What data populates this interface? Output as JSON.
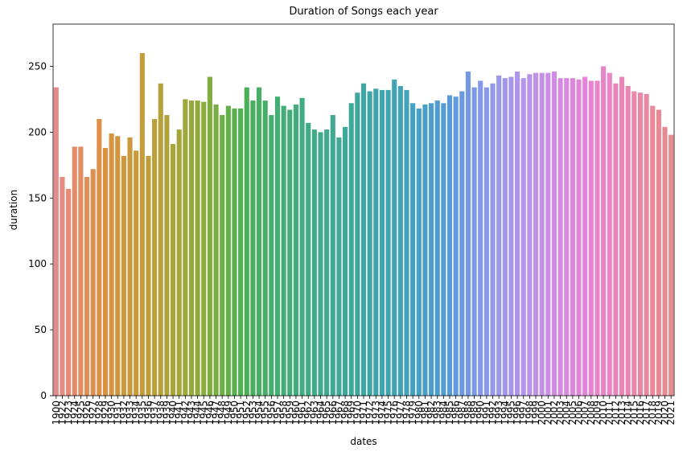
{
  "chart_data": {
    "type": "bar",
    "title": "Duration of Songs each year",
    "x_label": "dates",
    "y_label": "duration",
    "categories": [
      "1900",
      "1922",
      "1923",
      "1924",
      "1925",
      "1926",
      "1927",
      "1928",
      "1929",
      "1930",
      "1931",
      "1932",
      "1933",
      "1934",
      "1935",
      "1936",
      "1937",
      "1938",
      "1939",
      "1940",
      "1941",
      "1942",
      "1943",
      "1944",
      "1945",
      "1946",
      "1947",
      "1948",
      "1949",
      "1950",
      "1951",
      "1952",
      "1953",
      "1954",
      "1955",
      "1956",
      "1957",
      "1958",
      "1959",
      "1960",
      "1961",
      "1962",
      "1963",
      "1964",
      "1965",
      "1966",
      "1967",
      "1968",
      "1969",
      "1970",
      "1971",
      "1972",
      "1973",
      "1974",
      "1975",
      "1976",
      "1977",
      "1978",
      "1979",
      "1980",
      "1981",
      "1982",
      "1983",
      "1984",
      "1985",
      "1986",
      "1987",
      "1988",
      "1989",
      "1990",
      "1991",
      "1992",
      "1993",
      "1994",
      "1995",
      "1996",
      "1997",
      "1998",
      "1999",
      "2000",
      "2001",
      "2002",
      "2003",
      "2004",
      "2005",
      "2006",
      "2007",
      "2008",
      "2009",
      "2010",
      "2011",
      "2012",
      "2013",
      "2014",
      "2015",
      "2016",
      "2017",
      "2018",
      "2019",
      "2020",
      "2021"
    ],
    "values": [
      234,
      166,
      157,
      189,
      189,
      166,
      172,
      210,
      188,
      199,
      197,
      182,
      196,
      186,
      260,
      182,
      210,
      237,
      213,
      191,
      202,
      225,
      224,
      224,
      223,
      242,
      221,
      213,
      220,
      218,
      218,
      234,
      224,
      234,
      224,
      213,
      227,
      220,
      217,
      221,
      226,
      207,
      202,
      200,
      202,
      213,
      196,
      204,
      222,
      230,
      237,
      231,
      233,
      232,
      232,
      240,
      235,
      232,
      222,
      218,
      221,
      222,
      224,
      222,
      228,
      227,
      231,
      246,
      234,
      239,
      234,
      237,
      243,
      241,
      242,
      246,
      241,
      244,
      245,
      245,
      245,
      246,
      241,
      241,
      241,
      240,
      242,
      239,
      239,
      250,
      245,
      237,
      242,
      235,
      231,
      230,
      229,
      220,
      217,
      204,
      198
    ],
    "colors": [
      "#e8898a",
      "#e68a80",
      "#e58b75",
      "#e38c6c",
      "#e28d62",
      "#e08e58",
      "#de8f50",
      "#dc9048",
      "#d99142",
      "#d69340",
      "#d2953d",
      "#cf973c",
      "#cb993b",
      "#c79b3b",
      "#c39d3b",
      "#bf9e3b",
      "#baa03b",
      "#b5a23b",
      "#b0a33b",
      "#aaa53b",
      "#a4a63b",
      "#9ea83b",
      "#97a93c",
      "#90ab3d",
      "#88ac3e",
      "#80ad40",
      "#77ae43",
      "#6eaf46",
      "#64b049",
      "#5ab04d",
      "#50b052",
      "#4ab057",
      "#47b05d",
      "#46af62",
      "#45af67",
      "#44ae6c",
      "#43ae71",
      "#43ad75",
      "#42ad79",
      "#42ac7d",
      "#41ac81",
      "#41ab85",
      "#41ab89",
      "#40aa8c",
      "#40aa90",
      "#40a993",
      "#3fa996",
      "#3fa899",
      "#3fa89c",
      "#3fa7a0",
      "#3fa7a3",
      "#3fa6a6",
      "#40a6a9",
      "#40a5ad",
      "#40a4b0",
      "#41a4b4",
      "#42a3b7",
      "#43a2bb",
      "#44a1bf",
      "#46a0c3",
      "#489fc7",
      "#4b9ecb",
      "#4f9dd0",
      "#549cd4",
      "#5a9ad9",
      "#619ade",
      "#6999e2",
      "#7399e5",
      "#7c99e8",
      "#8499e9",
      "#8c99ea",
      "#9399eb",
      "#9a98eb",
      "#a097eb",
      "#a796eb",
      "#ad95eb",
      "#b394ea",
      "#b993e9",
      "#bf92e8",
      "#c490e7",
      "#ca8ee5",
      "#cf8ce3",
      "#d48ae1",
      "#d988df",
      "#dd86dc",
      "#e185d9",
      "#e484d5",
      "#e784d1",
      "#e884cc",
      "#e984c7",
      "#ea84c2",
      "#ea85bc",
      "#ea86b6",
      "#ea86b0",
      "#ea87aa",
      "#e988a5",
      "#e988a0",
      "#e9899b",
      "#e88996",
      "#e88992",
      "#e88a8e"
    ],
    "ylim": [
      0,
      282
    ],
    "yticks": [
      0,
      50,
      100,
      150,
      200,
      250
    ],
    "grid": false
  }
}
